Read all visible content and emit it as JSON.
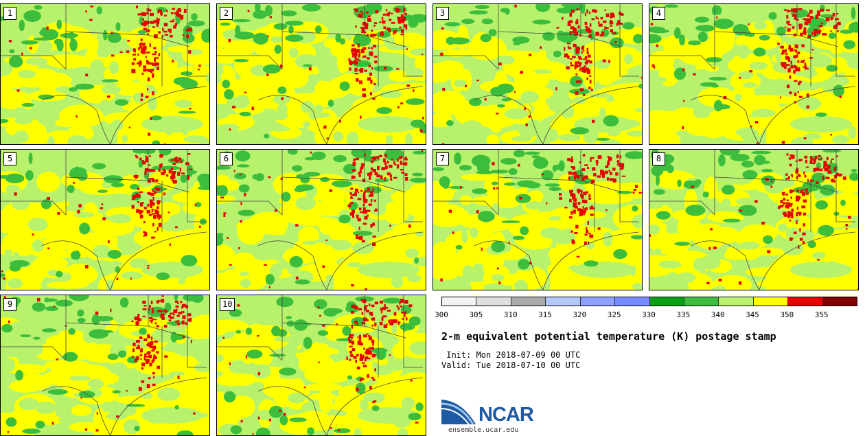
{
  "members": [
    "1",
    "2",
    "3",
    "4",
    "5",
    "6",
    "7",
    "8",
    "9",
    "10"
  ],
  "colorbar": {
    "colors": [
      "#f2f2f2",
      "#dedede",
      "#aaaaaa",
      "#b4c8fa",
      "#8ca0ff",
      "#788cff",
      "#0aa014",
      "#3cbe3c",
      "#b8f26c",
      "#ffff00",
      "#e60000",
      "#820000"
    ],
    "ticks": [
      "300",
      "305",
      "310",
      "315",
      "320",
      "325",
      "330",
      "335",
      "340",
      "345",
      "350",
      "355"
    ]
  },
  "title": "2-m equivalent potential temperature (K) postage stamp",
  "init_line": " Init: Mon 2018-07-09 00 UTC",
  "valid_line": "Valid: Tue 2018-07-10 00 UTC",
  "logo": {
    "text": "NCAR",
    "url": "ensemble.ucar.edu",
    "color": "#1d5aa3"
  }
}
